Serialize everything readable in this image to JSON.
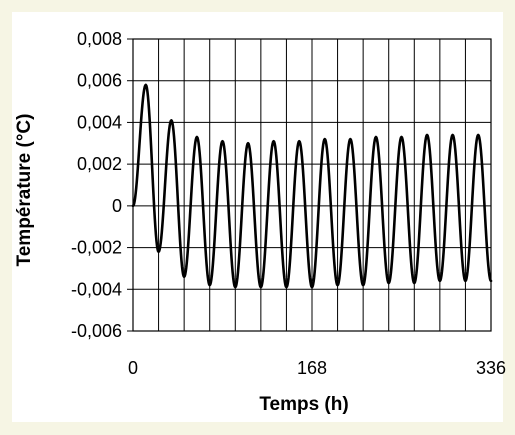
{
  "chart_data": {
    "type": "line",
    "xlabel": "Temps (h)",
    "ylabel": "Température (°C)",
    "xlim": [
      0,
      336
    ],
    "ylim": [
      -0.006,
      0.008
    ],
    "x_ticks": [
      0,
      168,
      336
    ],
    "x_tick_labels": [
      "0",
      "168",
      "336"
    ],
    "y_ticks": [
      0.008,
      0.006,
      0.004,
      0.002,
      0,
      -0.002,
      -0.004,
      -0.006
    ],
    "y_tick_labels": [
      "0,008",
      "0,006",
      "0,004",
      "0,002",
      "0",
      "-0,002",
      "-0,004",
      "-0,006"
    ],
    "x_gridlines": [
      0,
      24,
      48,
      72,
      96,
      120,
      144,
      168,
      192,
      216,
      240,
      264,
      288,
      312,
      336
    ],
    "grid": true,
    "legend": "none",
    "series": [
      {
        "x": [
          0,
          12,
          24,
          36,
          48,
          60,
          72,
          84,
          96,
          108,
          120,
          132,
          144,
          156,
          168,
          180,
          192,
          204,
          216,
          228,
          240,
          252,
          264,
          276,
          288,
          300,
          312,
          324,
          336
        ],
        "values": [
          0,
          0.0058,
          -0.0022,
          0.0041,
          -0.0034,
          0.0033,
          -0.0038,
          0.0031,
          -0.0039,
          0.003,
          -0.0039,
          0.0031,
          -0.0039,
          0.0031,
          -0.0039,
          0.0032,
          -0.0038,
          0.0032,
          -0.0038,
          0.0033,
          -0.0037,
          0.0033,
          -0.0037,
          0.0034,
          -0.0036,
          0.0034,
          -0.0036,
          0.0034,
          -0.0036
        ],
        "color": "#000000"
      }
    ]
  }
}
